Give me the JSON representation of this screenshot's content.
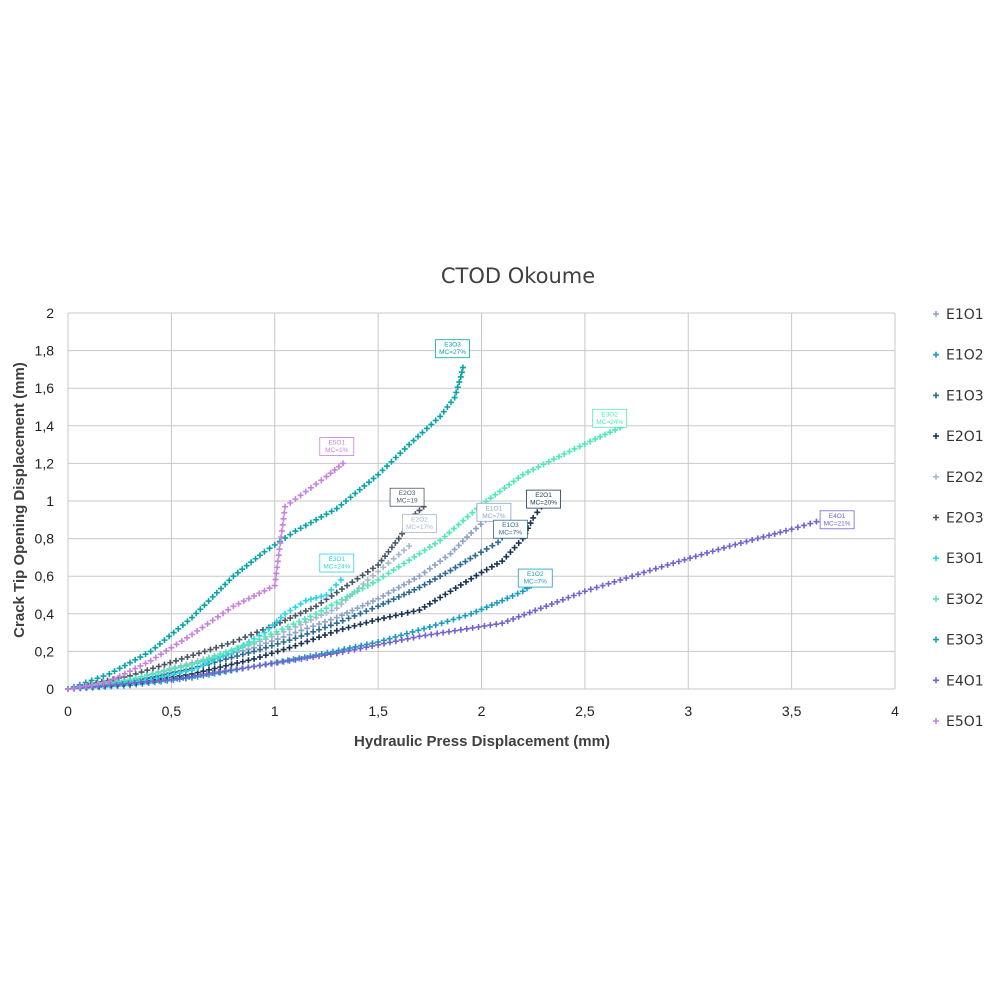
{
  "chart_data": {
    "type": "scatter",
    "title": "CTOD Okoume",
    "xlabel": "Hydraulic Press Displacement (mm)",
    "ylabel": "Crack Tip Opening Displacement (mm)",
    "xlim": [
      0,
      4
    ],
    "ylim": [
      0,
      2
    ],
    "x_ticks": [
      "0",
      "0,5",
      "1",
      "1,5",
      "2",
      "2,5",
      "3",
      "3,5",
      "4"
    ],
    "y_ticks": [
      "0",
      "0,2",
      "0,4",
      "0,6",
      "0,8",
      "1",
      "1,2",
      "1,4",
      "1,6",
      "1,8",
      "2"
    ],
    "grid": true,
    "legend_position": "right",
    "marker": "+",
    "series": [
      {
        "name": "E1O1",
        "color": "#8fa3c6",
        "points": [
          [
            0,
            0
          ],
          [
            0.3,
            0.05
          ],
          [
            0.6,
            0.13
          ],
          [
            0.9,
            0.22
          ],
          [
            1.1,
            0.3
          ],
          [
            1.3,
            0.38
          ],
          [
            1.5,
            0.48
          ],
          [
            1.7,
            0.6
          ],
          [
            1.85,
            0.72
          ],
          [
            1.95,
            0.83
          ],
          [
            2.02,
            0.9
          ]
        ],
        "label": [
          "E1O1",
          "MC=7%"
        ],
        "label_at": [
          2.06,
          0.94
        ]
      },
      {
        "name": "E1O2",
        "color": "#1a9bc0",
        "points": [
          [
            0,
            0
          ],
          [
            0.3,
            0.02
          ],
          [
            0.6,
            0.06
          ],
          [
            0.9,
            0.12
          ],
          [
            1.2,
            0.18
          ],
          [
            1.5,
            0.25
          ],
          [
            1.75,
            0.33
          ],
          [
            1.95,
            0.4
          ],
          [
            2.1,
            0.47
          ],
          [
            2.2,
            0.52
          ],
          [
            2.24,
            0.55
          ]
        ],
        "label": [
          "E1O2",
          "MC=7%"
        ],
        "label_at": [
          2.26,
          0.59
        ]
      },
      {
        "name": "E1O3",
        "color": "#2e6a90",
        "points": [
          [
            0,
            0
          ],
          [
            0.3,
            0.04
          ],
          [
            0.6,
            0.11
          ],
          [
            0.9,
            0.2
          ],
          [
            1.1,
            0.27
          ],
          [
            1.3,
            0.35
          ],
          [
            1.5,
            0.44
          ],
          [
            1.7,
            0.54
          ],
          [
            1.85,
            0.63
          ],
          [
            1.97,
            0.71
          ],
          [
            2.08,
            0.78
          ],
          [
            2.12,
            0.83
          ]
        ],
        "label": [
          "E1O3",
          "MC=7%"
        ],
        "label_at": [
          2.14,
          0.85
        ]
      },
      {
        "name": "E2O1",
        "color": "#1c3550",
        "points": [
          [
            0,
            0
          ],
          [
            0.3,
            0.03
          ],
          [
            0.6,
            0.08
          ],
          [
            0.9,
            0.16
          ],
          [
            1.1,
            0.23
          ],
          [
            1.3,
            0.31
          ],
          [
            1.5,
            0.37
          ],
          [
            1.7,
            0.42
          ],
          [
            1.85,
            0.52
          ],
          [
            2.0,
            0.62
          ],
          [
            2.1,
            0.68
          ],
          [
            2.2,
            0.8
          ],
          [
            2.25,
            0.91
          ],
          [
            2.29,
            0.97
          ]
        ],
        "label": [
          "E2O1",
          "MC=20%"
        ],
        "label_at": [
          2.3,
          1.01
        ]
      },
      {
        "name": "E2O2",
        "color": "#a8b8cc",
        "points": [
          [
            0,
            0
          ],
          [
            0.3,
            0.05
          ],
          [
            0.6,
            0.14
          ],
          [
            0.9,
            0.24
          ],
          [
            1.1,
            0.33
          ],
          [
            1.3,
            0.43
          ],
          [
            1.45,
            0.58
          ],
          [
            1.55,
            0.67
          ],
          [
            1.65,
            0.76
          ]
        ],
        "label": [
          "E2O2",
          "MC=17%"
        ],
        "label_at": [
          1.7,
          0.88
        ]
      },
      {
        "name": "E2O3",
        "color": "#4a5866",
        "points": [
          [
            0,
            0
          ],
          [
            0.3,
            0.07
          ],
          [
            0.55,
            0.16
          ],
          [
            0.8,
            0.25
          ],
          [
            1.0,
            0.34
          ],
          [
            1.2,
            0.44
          ],
          [
            1.35,
            0.55
          ],
          [
            1.5,
            0.66
          ],
          [
            1.6,
            0.8
          ],
          [
            1.68,
            0.93
          ],
          [
            1.72,
            0.97
          ]
        ],
        "label": [
          "E2O3",
          "MC=19"
        ],
        "label_at": [
          1.64,
          1.02
        ]
      },
      {
        "name": "E3O1",
        "color": "#2ad6e6",
        "points": [
          [
            0,
            0
          ],
          [
            0.2,
            0.02
          ],
          [
            0.4,
            0.05
          ],
          [
            0.6,
            0.1
          ],
          [
            0.8,
            0.2
          ],
          [
            0.95,
            0.3
          ],
          [
            1.05,
            0.4
          ],
          [
            1.15,
            0.47
          ],
          [
            1.25,
            0.5
          ],
          [
            1.32,
            0.58
          ]
        ],
        "label": [
          "E3O1",
          "MC=24%"
        ],
        "label_at": [
          1.3,
          0.67
        ]
      },
      {
        "name": "E3O2",
        "color": "#4fe8b8",
        "points": [
          [
            0,
            0
          ],
          [
            0.3,
            0.05
          ],
          [
            0.6,
            0.13
          ],
          [
            0.9,
            0.25
          ],
          [
            1.2,
            0.4
          ],
          [
            1.5,
            0.58
          ],
          [
            1.8,
            0.79
          ],
          [
            2.0,
            0.98
          ],
          [
            2.2,
            1.14
          ],
          [
            2.4,
            1.25
          ],
          [
            2.55,
            1.33
          ],
          [
            2.67,
            1.39
          ]
        ],
        "label": [
          "E3O2",
          "MC=24%"
        ],
        "label_at": [
          2.62,
          1.44
        ]
      },
      {
        "name": "E3O3",
        "color": "#06a3a8",
        "points": [
          [
            0,
            0
          ],
          [
            0.2,
            0.08
          ],
          [
            0.4,
            0.2
          ],
          [
            0.6,
            0.38
          ],
          [
            0.8,
            0.6
          ],
          [
            0.95,
            0.73
          ],
          [
            1.1,
            0.84
          ],
          [
            1.3,
            0.96
          ],
          [
            1.5,
            1.14
          ],
          [
            1.65,
            1.3
          ],
          [
            1.8,
            1.45
          ],
          [
            1.87,
            1.55
          ],
          [
            1.9,
            1.66
          ],
          [
            1.91,
            1.71
          ]
        ],
        "label": [
          "E3O3",
          "MC=27%"
        ],
        "label_at": [
          1.86,
          1.81
        ]
      },
      {
        "name": "E4O1",
        "color": "#7562d1",
        "points": [
          [
            0,
            0
          ],
          [
            0.5,
            0.05
          ],
          [
            0.9,
            0.12
          ],
          [
            1.3,
            0.19
          ],
          [
            1.7,
            0.28
          ],
          [
            2.1,
            0.35
          ],
          [
            2.5,
            0.52
          ],
          [
            2.9,
            0.66
          ],
          [
            3.2,
            0.76
          ],
          [
            3.5,
            0.85
          ],
          [
            3.65,
            0.9
          ]
        ],
        "label": [
          "E4O1",
          "MC=21%"
        ],
        "label_at": [
          3.72,
          0.9
        ]
      },
      {
        "name": "E5O1",
        "color": "#c682de",
        "points": [
          [
            0,
            0
          ],
          [
            0.2,
            0.04
          ],
          [
            0.4,
            0.15
          ],
          [
            0.6,
            0.29
          ],
          [
            0.8,
            0.44
          ],
          [
            1.0,
            0.55
          ],
          [
            1.05,
            0.97
          ],
          [
            1.15,
            1.05
          ],
          [
            1.25,
            1.13
          ],
          [
            1.33,
            1.2
          ]
        ],
        "label": [
          "E5O1",
          "MC=1%"
        ],
        "label_at": [
          1.3,
          1.29
        ]
      }
    ]
  }
}
